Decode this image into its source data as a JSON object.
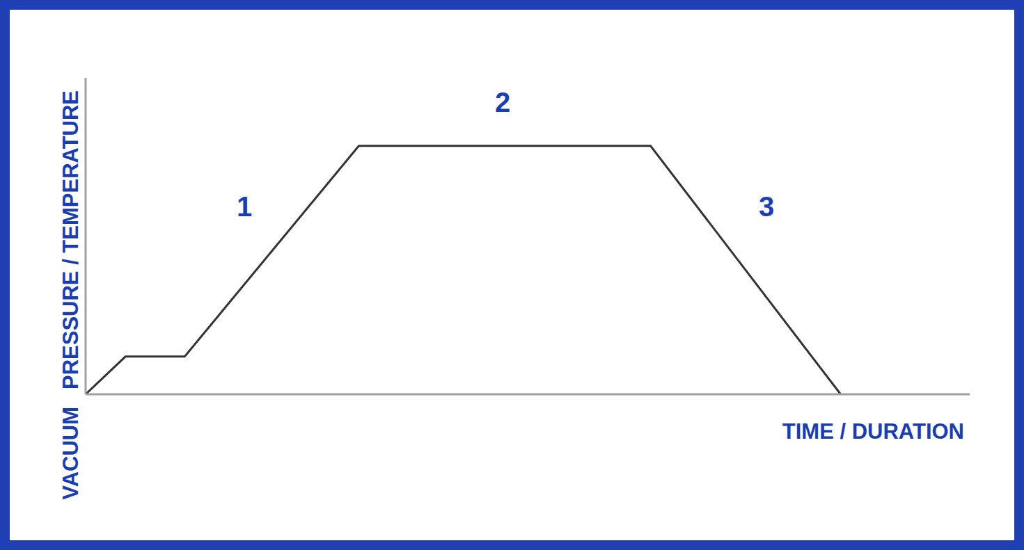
{
  "chart_data": {
    "type": "line",
    "x_label": "TIME / DURATION",
    "y_label": "PRESSURE / TEMPERATURE",
    "annotations": [
      "1",
      "2",
      "3"
    ],
    "x": [
      0,
      4.5,
      11.2,
      30.9,
      63.9,
      85.4
    ],
    "values": [
      0,
      11.9,
      11.9,
      78.5,
      78.5,
      0
    ],
    "color": "#333333",
    "xlim": [
      0,
      100
    ],
    "ylim": [
      0,
      100
    ],
    "xticks": [],
    "yticks": [
      {
        "value": 0,
        "label": "VACUUM"
      }
    ],
    "grid": false,
    "tick_labels": "y"
  }
}
